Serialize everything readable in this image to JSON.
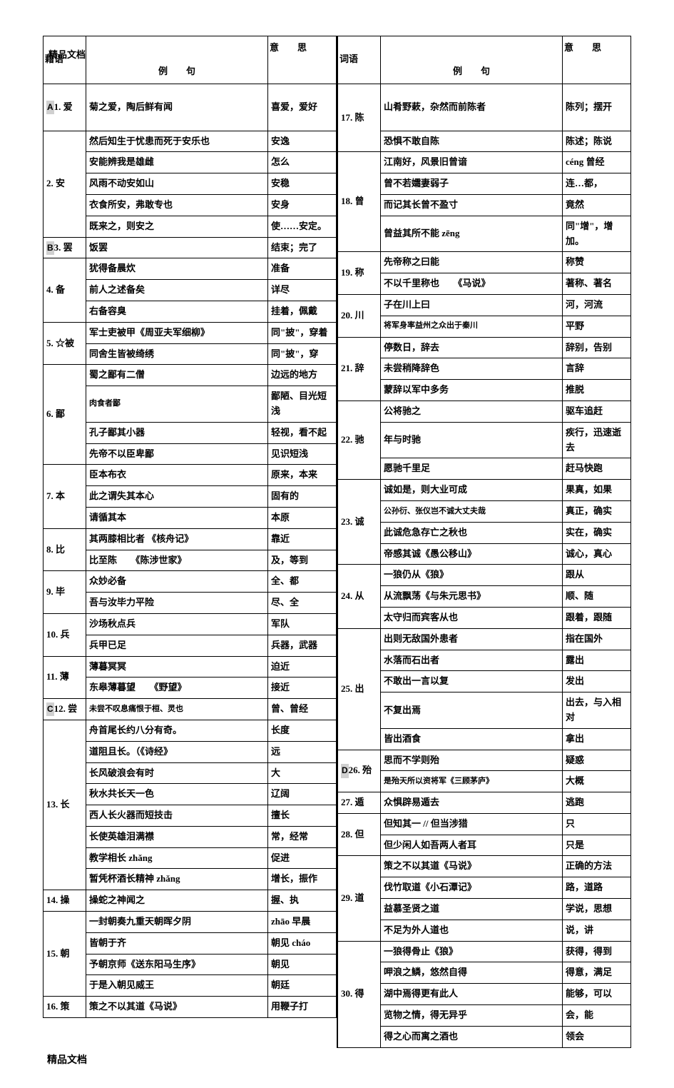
{
  "watermark": "精品文档",
  "footer": "精品文档",
  "headers": {
    "word_l": "藉语",
    "word_r": "词语",
    "example": "例　　句",
    "meaning": "意　　思"
  },
  "left": [
    {
      "tag": "A",
      "word": "1. 爱",
      "rows": [
        {
          "ex": "菊之爱，陶后鲜有闻",
          "mean": "喜爱，爱好",
          "tall": true
        }
      ]
    },
    {
      "word": "2. 安",
      "rows": [
        {
          "ex": "然后知生于忧患而死于安乐也",
          "mean": "安逸"
        },
        {
          "ex": "安能辨我是雄雌",
          "mean": "怎么"
        },
        {
          "ex": "风雨不动安如山",
          "mean": "安稳"
        },
        {
          "ex": "衣食所安，弗敢专也",
          "mean": "安身"
        },
        {
          "ex": "既来之，则安之",
          "mean": "使……安定。"
        }
      ]
    },
    {
      "tag": "B",
      "word": "3. 罢",
      "rows": [
        {
          "ex": "饭罢",
          "mean": "结束；完了"
        }
      ]
    },
    {
      "word": "4. 备",
      "rows": [
        {
          "ex": "犹得备晨炊",
          "mean": "准备"
        },
        {
          "ex": "前人之述备矣",
          "mean": "详尽"
        },
        {
          "ex": "右备容臭",
          "mean": "挂着，佩戴"
        }
      ]
    },
    {
      "word": "5. ☆被",
      "rows": [
        {
          "ex": "军士吏被甲《周亚夫军细柳》",
          "mean": "同\"披\"，穿着"
        },
        {
          "ex": "同舍生皆被绮绣",
          "mean": "同\"披\"，穿"
        }
      ]
    },
    {
      "word": "6. 鄙",
      "rows": [
        {
          "ex": "蜀之鄙有二僧",
          "mean": "边远的地方"
        },
        {
          "ex": "肉食者鄙",
          "mean": "鄙陋、目光短浅",
          "sm": true
        },
        {
          "ex": "孔子鄙其小器",
          "mean": "轻视，看不起"
        },
        {
          "ex": "先帝不以臣卑鄙",
          "mean": "见识短浅"
        }
      ]
    },
    {
      "word": "7. 本",
      "rows": [
        {
          "ex": "臣本布衣",
          "mean": "原来，本来"
        },
        {
          "ex": "此之谓失其本心",
          "mean": "固有的"
        },
        {
          "ex": "请循其本",
          "mean": "本原"
        }
      ]
    },
    {
      "word": "8. 比",
      "rows": [
        {
          "ex": "其两膝相比者  《核舟记》",
          "mean": "靠近"
        },
        {
          "ex": "比至陈　　《陈涉世家》",
          "mean": "及，等到"
        }
      ]
    },
    {
      "word": "9. 毕",
      "rows": [
        {
          "ex": "众妙必备",
          "mean": "全、都"
        },
        {
          "ex": "吾与汝毕力平险",
          "mean": "尽、全"
        }
      ]
    },
    {
      "word": "10. 兵",
      "rows": [
        {
          "ex": "沙场秋点兵",
          "mean": "军队"
        },
        {
          "ex": "兵甲已足",
          "mean": "兵器，武器"
        }
      ]
    },
    {
      "word": "11. 薄",
      "rows": [
        {
          "ex": "薄暮冥冥",
          "mean": "迫近"
        },
        {
          "ex": "东皋薄暮望　　《野望》",
          "mean": "接近"
        }
      ]
    },
    {
      "tag": "C",
      "word": "12. 尝",
      "rows": [
        {
          "ex": "未尝不叹息痛恨于桓、灵也",
          "mean": "曾、曾经",
          "sm": true
        }
      ]
    },
    {
      "word": "13. 长",
      "rows": [
        {
          "ex": "舟首尾长约八分有奇。",
          "mean": "长度"
        },
        {
          "ex": "道阻且长。（《诗经》",
          "mean": "远"
        },
        {
          "ex": "长风破浪会有时",
          "mean": "大"
        },
        {
          "ex": "秋水共长天一色",
          "mean": "辽阔"
        },
        {
          "ex": "西人长火器而短技击",
          "mean": "擅长"
        },
        {
          "ex": "长使英雄泪满襟",
          "mean": "常，经常"
        },
        {
          "ex": "教学相长 zhǎng",
          "mean": "促进"
        },
        {
          "ex": "暂凭杯酒长精神 zhǎng",
          "mean": "增长，振作"
        }
      ]
    },
    {
      "word": "14. 操",
      "rows": [
        {
          "ex": "操蛇之神闻之",
          "mean": "握、执"
        }
      ]
    },
    {
      "word": "15. 朝",
      "rows": [
        {
          "ex": "一封朝奏九重天朝晖夕阴",
          "mean": "zhāo 早晨"
        },
        {
          "ex": "皆朝于齐",
          "mean": "朝见 cháo"
        },
        {
          "ex": "予朝京师《送东阳马生序》",
          "mean": "朝见"
        },
        {
          "ex": "于是入朝见威王",
          "mean": "朝廷"
        }
      ]
    },
    {
      "word": "16. 策",
      "rows": [
        {
          "ex": "策之不以其道《马说》",
          "mean": "用鞭子打"
        }
      ]
    }
  ],
  "right": [
    {
      "word": "17. 陈",
      "rows": [
        {
          "ex": "山肴野蔌，杂然而前陈者",
          "mean": "陈列；摆开",
          "tall": true
        },
        {
          "ex": "恐惧不敢自陈",
          "mean": "陈述；陈说"
        }
      ]
    },
    {
      "word": "18. 曾",
      "rows": [
        {
          "ex": "江南好，风景旧曾谙",
          "mean": "céng 曾经"
        },
        {
          "ex": "曾不若孀妻弱子",
          "mean": "连…都，"
        },
        {
          "ex": "而记其长曾不盈寸",
          "mean": "竟然"
        },
        {
          "ex": "曾益其所不能 zēng",
          "mean": "同\"增\"，增加。"
        }
      ]
    },
    {
      "word": "19. 称",
      "rows": [
        {
          "ex": "先帝称之曰能",
          "mean": "称赞"
        },
        {
          "ex": "不以千里称也　　《马说》",
          "mean": "著称、著名"
        }
      ]
    },
    {
      "word": "20. 川",
      "rows": [
        {
          "ex": "子在川上曰",
          "mean": "河，河流"
        },
        {
          "ex": "将军身率益州之众出于秦川",
          "mean": "平野",
          "sm": true
        }
      ]
    },
    {
      "word": "21. 辞",
      "rows": [
        {
          "ex": "停数日，辞去",
          "mean": "辞别，告别"
        },
        {
          "ex": "未尝稍降辞色",
          "mean": "言辞"
        },
        {
          "ex": "蒙辞以军中多务",
          "mean": "推脱"
        }
      ]
    },
    {
      "word": "22. 驰",
      "rows": [
        {
          "ex": "公将驰之",
          "mean": "驱车追赶"
        },
        {
          "ex": "年与时驰",
          "mean": "疾行，迅速逝去"
        },
        {
          "ex": "愿驰千里足",
          "mean": "赶马快跑"
        }
      ]
    },
    {
      "word": "23. 诚",
      "rows": [
        {
          "ex": "诚如是，则大业可成",
          "mean": "果真，如果"
        },
        {
          "ex": "公孙衍、张仪岂不诚大丈夫哉",
          "mean": "真正，确实",
          "sm": true
        },
        {
          "ex": "此诚危急存亡之秋也",
          "mean": "实在，确实"
        },
        {
          "ex": "帝感其诚《愚公移山》",
          "mean": "诚心，真心"
        }
      ]
    },
    {
      "word": "24. 从",
      "rows": [
        {
          "ex": "一狼仍从《狼》",
          "mean": "跟从"
        },
        {
          "ex": "从流飘荡《与朱元思书》",
          "mean": "顺、随"
        },
        {
          "ex": "太守归而宾客从也",
          "mean": "跟着，跟随"
        }
      ]
    },
    {
      "word": "25. 出",
      "rows": [
        {
          "ex": "出则无敌国外患者",
          "mean": "指在国外"
        },
        {
          "ex": "水落而石出者",
          "mean": "露出"
        },
        {
          "ex": "不敢出一言以复",
          "mean": "发出"
        },
        {
          "ex": "不复出焉",
          "mean": "出去，与入相对"
        },
        {
          "ex": "皆出酒食",
          "mean": "拿出"
        }
      ]
    },
    {
      "tag": "D",
      "word": "26. 殆",
      "rows": [
        {
          "ex": "思而不学则殆",
          "mean": "疑惑"
        },
        {
          "ex": "是殆天所以资将军《三顾茅庐》",
          "mean": "大概",
          "sm": true
        }
      ]
    },
    {
      "word": "27. 遁",
      "rows": [
        {
          "ex": "众惧辟易遁去",
          "mean": "逃跑"
        }
      ]
    },
    {
      "word": "28. 但",
      "rows": [
        {
          "ex": "但知其一  // 但当涉猎",
          "mean": "只"
        },
        {
          "ex": "但少闲人如吾两人者耳",
          "mean": "只是"
        }
      ]
    },
    {
      "word": "29. 道",
      "rows": [
        {
          "ex": "策之不以其道《马说》",
          "mean": "正确的方法"
        },
        {
          "ex": "伐竹取道《小石潭记》",
          "mean": "路，道路"
        },
        {
          "ex": "益慕圣贤之道",
          "mean": "学说，思想"
        },
        {
          "ex": "不足为外人道也",
          "mean": "说，讲"
        }
      ]
    },
    {
      "word": "30. 得",
      "rows": [
        {
          "ex": "一狼得骨止《狼》",
          "mean": "获得，得到"
        },
        {
          "ex": "呷浪之鳞，悠然自得",
          "mean": "得意，满足"
        },
        {
          "ex": "湖中焉得更有此人",
          "mean": "能够，可以"
        },
        {
          "ex": "览物之情，得无异乎",
          "mean": "会，能"
        },
        {
          "ex": "得之心而寓之酒也",
          "mean": "领会"
        }
      ]
    }
  ]
}
